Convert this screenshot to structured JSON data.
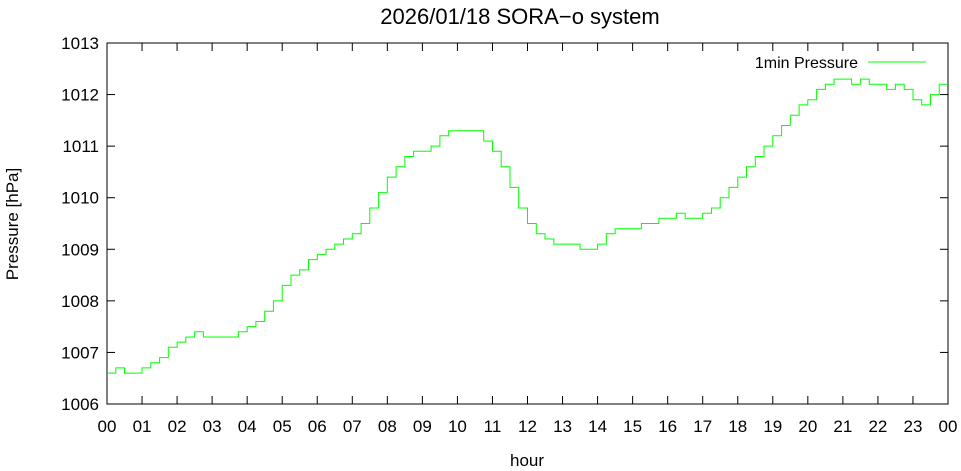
{
  "chart_data": {
    "type": "line",
    "title": "2026/01/18 SORA−o system",
    "xlabel": "hour",
    "ylabel": "Pressure [hPa]",
    "xlim": [
      0,
      24
    ],
    "ylim": [
      1006,
      1013
    ],
    "x_tick_labels": [
      "00",
      "01",
      "02",
      "03",
      "04",
      "05",
      "06",
      "07",
      "08",
      "09",
      "10",
      "11",
      "12",
      "13",
      "14",
      "15",
      "16",
      "17",
      "18",
      "19",
      "20",
      "21",
      "22",
      "23",
      "00"
    ],
    "y_tick_labels": [
      "1006",
      "1007",
      "1008",
      "1009",
      "1010",
      "1011",
      "1012",
      "1013"
    ],
    "grid": false,
    "legend_position": "top-right",
    "series": [
      {
        "name": "1min Pressure",
        "color": "#00ff00",
        "x": [
          0,
          0.25,
          0.5,
          0.75,
          1.0,
          1.25,
          1.5,
          1.75,
          2.0,
          2.25,
          2.5,
          2.75,
          3.0,
          3.25,
          3.5,
          3.75,
          4.0,
          4.25,
          4.5,
          4.75,
          5.0,
          5.25,
          5.5,
          5.75,
          6.0,
          6.25,
          6.5,
          6.75,
          7.0,
          7.25,
          7.5,
          7.75,
          8.0,
          8.25,
          8.5,
          8.75,
          9.0,
          9.25,
          9.5,
          9.75,
          10.0,
          10.25,
          10.5,
          10.75,
          11.0,
          11.25,
          11.5,
          11.75,
          12.0,
          12.25,
          12.5,
          12.75,
          13.0,
          13.25,
          13.5,
          13.75,
          14.0,
          14.25,
          14.5,
          14.75,
          15.0,
          15.25,
          15.5,
          15.75,
          16.0,
          16.25,
          16.5,
          16.75,
          17.0,
          17.25,
          17.5,
          17.75,
          18.0,
          18.25,
          18.5,
          18.75,
          19.0,
          19.25,
          19.5,
          19.75,
          20.0,
          20.25,
          20.5,
          20.75,
          21.0,
          21.25,
          21.5,
          21.75,
          22.0,
          22.25,
          22.5,
          22.75,
          23.0,
          23.25,
          23.5,
          23.75,
          24.0
        ],
        "y": [
          1006.6,
          1006.7,
          1006.6,
          1006.6,
          1006.7,
          1006.8,
          1006.9,
          1007.1,
          1007.2,
          1007.3,
          1007.4,
          1007.3,
          1007.3,
          1007.3,
          1007.3,
          1007.4,
          1007.5,
          1007.6,
          1007.8,
          1008.0,
          1008.3,
          1008.5,
          1008.6,
          1008.8,
          1008.9,
          1009.0,
          1009.1,
          1009.2,
          1009.3,
          1009.5,
          1009.8,
          1010.1,
          1010.4,
          1010.6,
          1010.8,
          1010.9,
          1010.9,
          1011.0,
          1011.2,
          1011.3,
          1011.3,
          1011.3,
          1011.3,
          1011.1,
          1010.9,
          1010.6,
          1010.2,
          1009.8,
          1009.5,
          1009.3,
          1009.2,
          1009.1,
          1009.1,
          1009.1,
          1009.0,
          1009.0,
          1009.1,
          1009.3,
          1009.4,
          1009.4,
          1009.4,
          1009.5,
          1009.5,
          1009.6,
          1009.6,
          1009.7,
          1009.6,
          1009.6,
          1009.7,
          1009.8,
          1010.0,
          1010.2,
          1010.4,
          1010.6,
          1010.8,
          1011.0,
          1011.2,
          1011.4,
          1011.6,
          1011.8,
          1011.9,
          1012.1,
          1012.2,
          1012.3,
          1012.3,
          1012.2,
          1012.3,
          1012.2,
          1012.2,
          1012.1,
          1012.2,
          1012.1,
          1011.9,
          1011.8,
          1012.0,
          1012.2,
          1012.2
        ]
      }
    ]
  }
}
